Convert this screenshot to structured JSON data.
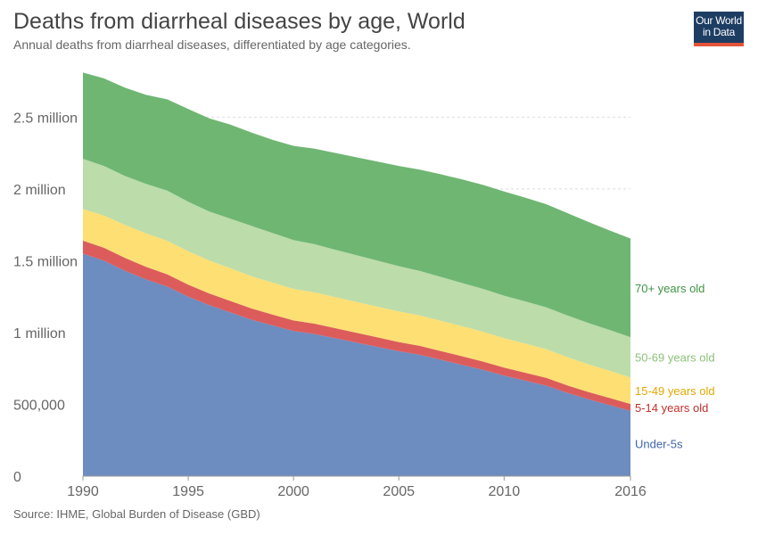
{
  "header": {
    "title": "Deaths from diarrheal diseases by age, World",
    "subtitle": "Annual deaths from diarrheal diseases, differentiated by age categories."
  },
  "logo": {
    "line1": "Our World",
    "line2": "in Data"
  },
  "footer": {
    "source": "Source: IHME, Global Burden of Disease (GBD)"
  },
  "colors": {
    "under5": "#6d8cc0",
    "age5_14": "#dc5c5c",
    "age15_49": "#fddf74",
    "age50_69": "#bcdcaa",
    "age70": "#6fb672",
    "grid": "#dddddd",
    "axis": "#666666"
  },
  "chart_data": {
    "type": "area",
    "stacked": true,
    "title": "Deaths from diarrheal diseases by age, World",
    "subtitle": "Annual deaths from diarrheal diseases, differentiated by age categories.",
    "x": [
      1990,
      1991,
      1992,
      1993,
      1994,
      1995,
      1996,
      1997,
      1998,
      1999,
      2000,
      2001,
      2002,
      2003,
      2004,
      2005,
      2006,
      2007,
      2008,
      2009,
      2010,
      2011,
      2012,
      2013,
      2014,
      2015,
      2016
    ],
    "x_ticks": [
      "1990",
      "1995",
      "2000",
      "2005",
      "2010",
      "2016"
    ],
    "y_ticks": [
      "0",
      "500,000",
      "1 million",
      "1.5 million",
      "2 million",
      "2.5 million"
    ],
    "y_tick_values": [
      0,
      500000,
      1000000,
      1500000,
      2000000,
      2500000
    ],
    "ylim": [
      0,
      2850000
    ],
    "xlim": [
      1990,
      2016
    ],
    "grid": true,
    "legend": "inline-right",
    "series": [
      {
        "name": "Under-5s",
        "color_key": "under5",
        "values": [
          1550000,
          1500000,
          1430000,
          1370000,
          1320000,
          1250000,
          1190000,
          1140000,
          1090000,
          1050000,
          1010000,
          990000,
          960000,
          930000,
          900000,
          870000,
          845000,
          810000,
          775000,
          740000,
          700000,
          665000,
          630000,
          580000,
          535000,
          495000,
          455000
        ]
      },
      {
        "name": "5-14 years old",
        "color_key": "age5_14",
        "values": [
          90000,
          90000,
          90000,
          88000,
          86000,
          84000,
          82000,
          80000,
          78000,
          76000,
          74000,
          72000,
          70000,
          68000,
          66000,
          64000,
          62000,
          61000,
          60000,
          58000,
          56000,
          55000,
          54000,
          52000,
          51000,
          50000,
          48000
        ]
      },
      {
        "name": "15-49 years old",
        "color_key": "age15_49",
        "values": [
          220000,
          225000,
          230000,
          232000,
          233000,
          232000,
          230000,
          228000,
          225000,
          222000,
          220000,
          218000,
          216000,
          215000,
          214000,
          213000,
          212000,
          211000,
          210000,
          208000,
          205000,
          203000,
          200000,
          197000,
          193000,
          189000,
          185000
        ]
      },
      {
        "name": "50-69 years old",
        "color_key": "age50_69",
        "values": [
          350000,
          345000,
          340000,
          345000,
          350000,
          345000,
          340000,
          345000,
          350000,
          345000,
          340000,
          335000,
          330000,
          325000,
          320000,
          315000,
          310000,
          305000,
          300000,
          298000,
          296000,
          294000,
          292000,
          290000,
          288000,
          284000,
          280000
        ]
      },
      {
        "name": "70+ years old",
        "color_key": "age70",
        "values": [
          600000,
          610000,
          615000,
          620000,
          635000,
          645000,
          650000,
          655000,
          650000,
          650000,
          656000,
          665000,
          674000,
          682000,
          690000,
          698000,
          706000,
          715000,
          722000,
          724000,
          725000,
          723000,
          718000,
          713000,
          703000,
          693000,
          687000
        ]
      }
    ]
  }
}
